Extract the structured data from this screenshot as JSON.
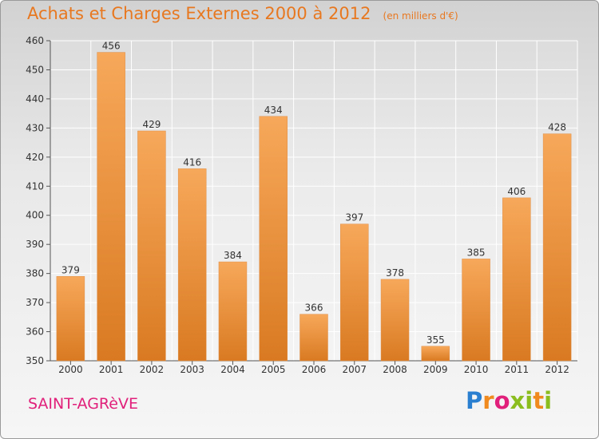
{
  "title": "Achats et Charges Externes 2000 à 2012",
  "unit": "(en milliers d'€)",
  "commune": "SAINT-AGRèVE",
  "logo": {
    "text": "Proxiti",
    "icon": "proxiti-logo"
  },
  "colors": {
    "title": "#e87820",
    "commune": "#e0207a",
    "bar_light": "#f7a85a",
    "bar_dark": "#d97a22"
  },
  "chart_data": {
    "type": "bar",
    "categories": [
      "2000",
      "2001",
      "2002",
      "2003",
      "2004",
      "2005",
      "2006",
      "2007",
      "2008",
      "2009",
      "2010",
      "2011",
      "2012"
    ],
    "values": [
      379,
      456,
      429,
      416,
      384,
      434,
      366,
      397,
      378,
      355,
      385,
      406,
      428
    ],
    "title": "Achats et Charges Externes 2000 à 2012",
    "xlabel": "",
    "ylabel": "",
    "ylim": [
      350,
      460
    ],
    "yticks": [
      350,
      360,
      370,
      380,
      390,
      400,
      410,
      420,
      430,
      440,
      450,
      460
    ],
    "grid": true,
    "data_labels": true
  }
}
